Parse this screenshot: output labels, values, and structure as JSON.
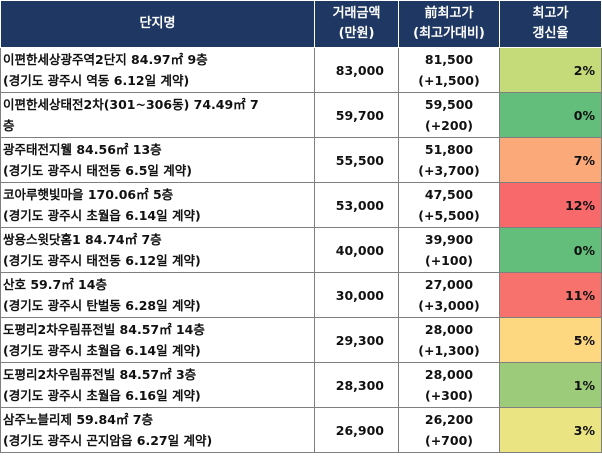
{
  "header": {
    "name": "단지명",
    "price_line1": "거래금액",
    "price_line2": "(만원)",
    "prev_line1": "前최고가",
    "prev_line2": "(최고가대비)",
    "rate_line1": "최고가",
    "rate_line2": "갱신율"
  },
  "rows": [
    {
      "name1": "이편한세상광주역2단지 84.97㎡ 9층",
      "name2": "(경기도 광주시 역동 6.12일 계약)",
      "price": "83,000",
      "prev": "81,500",
      "diff": "(+1,500)",
      "rate": "2%",
      "color": "#c5da78"
    },
    {
      "name1": "이편한세상태전2차(301~306동) 74.49㎡ 7",
      "name2": "층",
      "price": "59,700",
      "prev": "59,500",
      "diff": "(+200)",
      "rate": "0%",
      "color": "#63bd7b"
    },
    {
      "name1": "광주태전지웰 84.56㎡ 13층",
      "name2": "(경기도 광주시 태전동 6.5일 계약)",
      "price": "55,500",
      "prev": "51,800",
      "diff": "(+3,700)",
      "rate": "7%",
      "color": "#fba979"
    },
    {
      "name1": "코아루햇빛마을 170.06㎡ 5층",
      "name2": "(경기도 광주시 초월읍 6.14일 계약)",
      "price": "53,000",
      "prev": "47,500",
      "diff": "(+5,500)",
      "rate": "12%",
      "color": "#f8696b"
    },
    {
      "name1": "쌍용스윗닷홈1 84.74㎡ 7층",
      "name2": "(경기도 광주시 태전동 6.12일 계약)",
      "price": "40,000",
      "prev": "39,900",
      "diff": "(+100)",
      "rate": "0%",
      "color": "#63bd7b"
    },
    {
      "name1": "산호 59.7㎡ 14층",
      "name2": "(경기도 광주시 탄벌동 6.28일 계약)",
      "price": "30,000",
      "prev": "27,000",
      "diff": "(+3,000)",
      "rate": "11%",
      "color": "#f8726d"
    },
    {
      "name1": "도평리2차우림퓨전빌 84.57㎡ 14층",
      "name2": "(경기도 광주시 초월읍 6.14일 계약)",
      "price": "29,300",
      "prev": "28,000",
      "diff": "(+1,300)",
      "rate": "5%",
      "color": "#fed880"
    },
    {
      "name1": "도평리2차우림퓨전빌 84.57㎡ 3층",
      "name2": "(경기도 광주시 초월읍 6.16일 계약)",
      "price": "28,300",
      "prev": "28,000",
      "diff": "(+300)",
      "rate": "1%",
      "color": "#9ccc79"
    },
    {
      "name1": "삼주노블리제 59.84㎡ 7층",
      "name2": "(경기도 광주시 곤지암읍 6.27일 계약)",
      "price": "26,900",
      "prev": "26,200",
      "diff": "(+700)",
      "rate": "3%",
      "color": "#ebe483"
    }
  ]
}
